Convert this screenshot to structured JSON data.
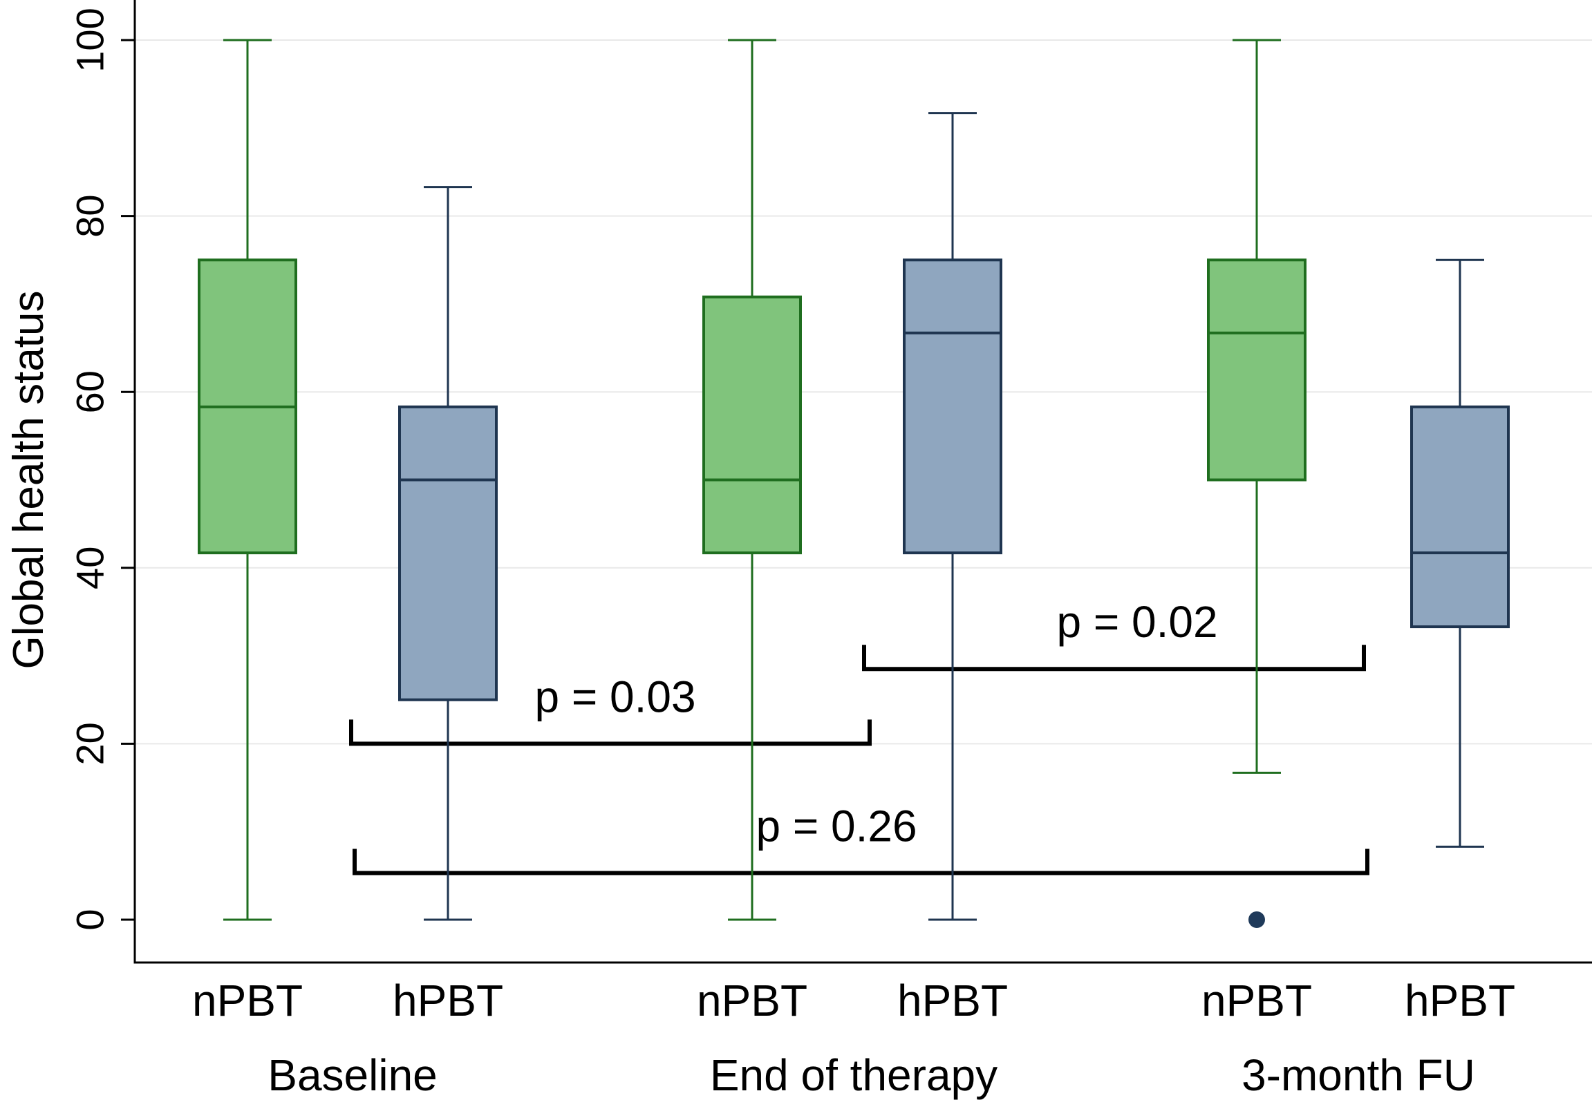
{
  "chart_data": {
    "type": "box",
    "ylabel": "Global health status",
    "xlabel": "",
    "ylim": [
      -5,
      103
    ],
    "yticks": [
      0,
      20,
      40,
      60,
      80,
      100
    ],
    "grid": true,
    "colors": {
      "nPBT_fill": "#80c47c",
      "nPBT_line": "#1f6e1f",
      "hPBT_fill": "#8fa6bf",
      "hPBT_line": "#1f3550",
      "outlier": "#1f3a5a"
    },
    "groups": [
      {
        "name": "Baseline",
        "boxes": [
          {
            "label": "nPBT",
            "group": "nPBT",
            "min": 0,
            "q1": 41.7,
            "median": 58.3,
            "q3": 75,
            "max": 100,
            "outliers": []
          },
          {
            "label": "hPBT",
            "group": "hPBT",
            "min": 0,
            "q1": 25,
            "median": 50,
            "q3": 58.3,
            "max": 83.3,
            "outliers": []
          }
        ]
      },
      {
        "name": "End of therapy",
        "boxes": [
          {
            "label": "nPBT",
            "group": "nPBT",
            "min": 0,
            "q1": 41.7,
            "median": 50,
            "q3": 70.8,
            "max": 100,
            "outliers": []
          },
          {
            "label": "hPBT",
            "group": "hPBT",
            "min": 0,
            "q1": 41.7,
            "median": 66.7,
            "q3": 75,
            "max": 91.7,
            "outliers": []
          }
        ]
      },
      {
        "name": "3-month FU",
        "boxes": [
          {
            "label": "nPBT",
            "group": "nPBT",
            "min": 16.7,
            "q1": 50,
            "median": 66.7,
            "q3": 75,
            "max": 100,
            "outliers": [
              0
            ]
          },
          {
            "label": "hPBT",
            "group": "hPBT",
            "min": 8.3,
            "q1": 33.3,
            "median": 41.7,
            "q3": 58.3,
            "max": 75,
            "outliers": []
          }
        ]
      }
    ],
    "annotations": [
      {
        "text": "p = 0.03",
        "from_group": "Baseline",
        "to_group": "End of therapy",
        "y": 20
      },
      {
        "text": "p = 0.02",
        "from_group": "End of therapy",
        "to_group": "3-month FU",
        "y": 28.5
      },
      {
        "text": "p = 0.26",
        "from_group": "Baseline",
        "to_group": "3-month FU",
        "y": 5.3
      }
    ]
  }
}
